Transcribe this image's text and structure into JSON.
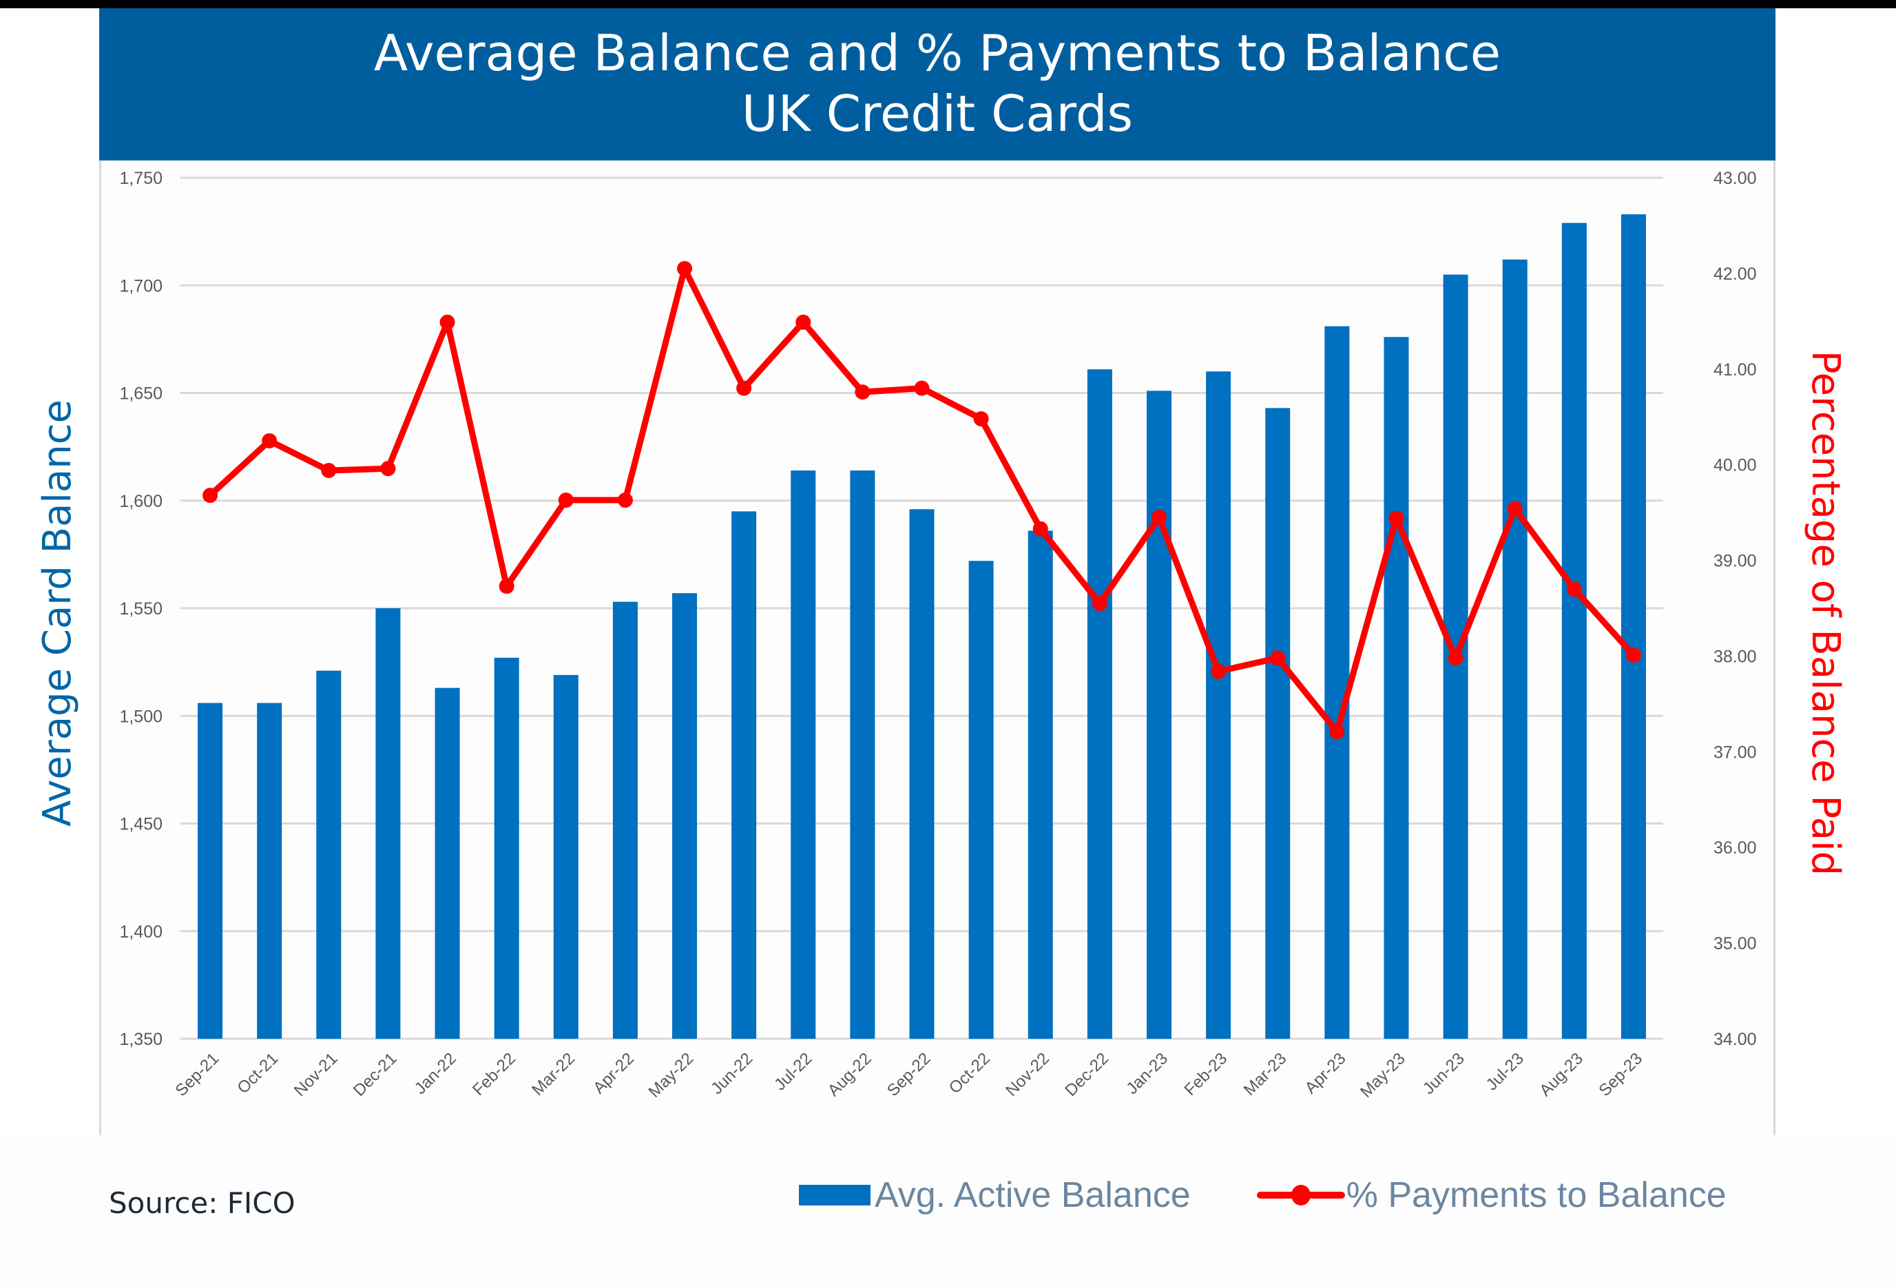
{
  "header": {
    "title_line1": "Average Balance and % Payments to Balance",
    "title_line2": "UK Credit Cards"
  },
  "axes": {
    "left_title": "Average Card Balance",
    "right_title": "Percentage of Balance Paid",
    "left_ticks": [
      "1,750",
      "1,700",
      "1,650",
      "1,600",
      "1,550",
      "1,500",
      "1,450",
      "1,400",
      "1,350"
    ],
    "right_ticks": [
      "43.00",
      "42.00",
      "41.00",
      "40.00",
      "39.00",
      "38.00",
      "37.00",
      "36.00",
      "35.00",
      "34.00"
    ]
  },
  "legend": {
    "bar_label": "Avg. Active Balance",
    "line_label": "% Payments to Balance"
  },
  "footer": {
    "source": "Source: FICO"
  },
  "colors": {
    "banner": "#005E9E",
    "bar": "#0070C0",
    "line": "#FF0000",
    "left_axis_title": "#0066A8",
    "right_axis_title": "#FF0000",
    "gridline": "#D9D9D9"
  },
  "chart_data": {
    "type": "bar",
    "title": "Average Balance and % Payments to Balance — UK Credit Cards",
    "xlabel": "",
    "ylabel": "Average Card Balance",
    "y2label": "Percentage of Balance Paid",
    "ylim": [
      1350,
      1750
    ],
    "y2lim": [
      34,
      43
    ],
    "grid": true,
    "legend_position": "bottom-right",
    "categories": [
      "Sep-21",
      "Oct-21",
      "Nov-21",
      "Dec-21",
      "Jan-22",
      "Feb-22",
      "Mar-22",
      "Apr-22",
      "May-22",
      "Jun-22",
      "Jul-22",
      "Aug-22",
      "Sep-22",
      "Oct-22",
      "Nov-22",
      "Dec-22",
      "Jan-23",
      "Feb-23",
      "Mar-23",
      "Apr-23",
      "May-23",
      "Jun-23",
      "Jul-23",
      "Aug-23",
      "Sep-23"
    ],
    "series": [
      {
        "name": "Avg. Active Balance",
        "type": "bar",
        "axis": "left",
        "values": [
          1506,
          1506,
          1521,
          1550,
          1513,
          1527,
          1519,
          1553,
          1557,
          1595,
          1614,
          1614,
          1596,
          1572,
          1586,
          1661,
          1651,
          1660,
          1643,
          1681,
          1676,
          1705,
          1712,
          1729,
          1733
        ]
      },
      {
        "name": "% Payments to Balance",
        "type": "line",
        "axis": "right",
        "values": [
          39.68,
          40.25,
          39.94,
          39.96,
          41.49,
          38.73,
          39.63,
          39.63,
          42.05,
          40.8,
          41.49,
          40.76,
          40.8,
          40.48,
          39.33,
          38.55,
          39.45,
          37.84,
          37.98,
          37.21,
          39.44,
          37.98,
          39.54,
          38.7,
          38.01
        ]
      }
    ],
    "source": "Source: FICO"
  }
}
